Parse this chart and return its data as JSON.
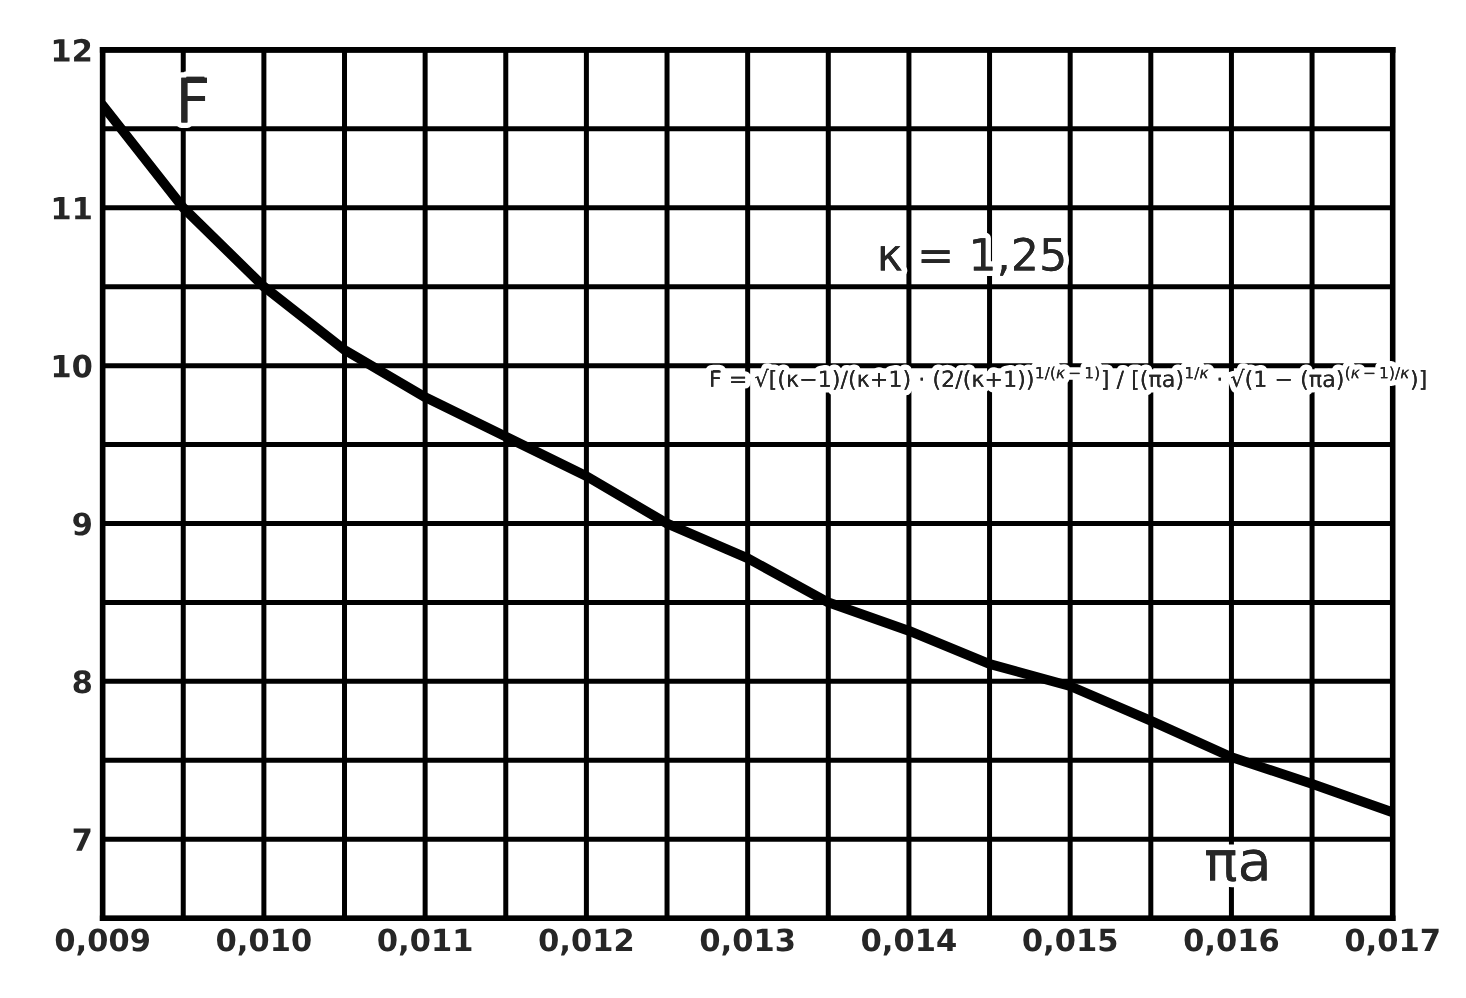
{
  "chart_data": {
    "type": "line",
    "xlabel": "πa",
    "ylabel": "F̄",
    "x": [
      0.009,
      0.0095,
      0.01,
      0.0105,
      0.011,
      0.0115,
      0.012,
      0.0125,
      0.013,
      0.0135,
      0.014,
      0.0145,
      0.015,
      0.0155,
      0.016,
      0.0165,
      0.017
    ],
    "series": [
      {
        "color": "#000000",
        "values": [
          11.65,
          11.0,
          10.5,
          10.1,
          9.8,
          9.55,
          9.3,
          9.0,
          8.78,
          8.5,
          8.32,
          8.11,
          7.97,
          7.75,
          7.52,
          7.35,
          7.17
        ]
      }
    ],
    "xlim": [
      0.009,
      0.017
    ],
    "ylim": [
      6.5,
      12
    ],
    "xticks": [
      {
        "value": 0.009,
        "label": "0,009"
      },
      {
        "value": 0.0095,
        "label": null
      },
      {
        "value": 0.01,
        "label": "0,010"
      },
      {
        "value": 0.0105,
        "label": null
      },
      {
        "value": 0.011,
        "label": "0,011"
      },
      {
        "value": 0.0115,
        "label": null
      },
      {
        "value": 0.012,
        "label": "0,012"
      },
      {
        "value": 0.0125,
        "label": null
      },
      {
        "value": 0.013,
        "label": "0,013"
      },
      {
        "value": 0.0135,
        "label": null
      },
      {
        "value": 0.014,
        "label": "0,014"
      },
      {
        "value": 0.0145,
        "label": null
      },
      {
        "value": 0.015,
        "label": "0,015"
      },
      {
        "value": 0.0155,
        "label": null
      },
      {
        "value": 0.016,
        "label": "0,016"
      },
      {
        "value": 0.0165,
        "label": null
      },
      {
        "value": 0.017,
        "label": "0,017"
      }
    ],
    "yticks": [
      {
        "value": 6.5,
        "label": null
      },
      7,
      {
        "value": 7.5,
        "label": null
      },
      8,
      {
        "value": 8.5,
        "label": null
      },
      9,
      {
        "value": 9.5,
        "label": null
      },
      10,
      {
        "value": 10.5,
        "label": null
      },
      11,
      {
        "value": 11.5,
        "label": null
      },
      12
    ],
    "grid": true,
    "marker": "none",
    "line_style": "solid",
    "legend": false,
    "annotations": [
      "κ = 1,25",
      "F̄ = √[(κ−1)/(κ+1) · (2/(κ+1))$^{1/(κ−1)}$] / [(πa)$^{1/κ}$ · √(1 − (πa)$^{(κ−1)/κ}$)]"
    ]
  }
}
